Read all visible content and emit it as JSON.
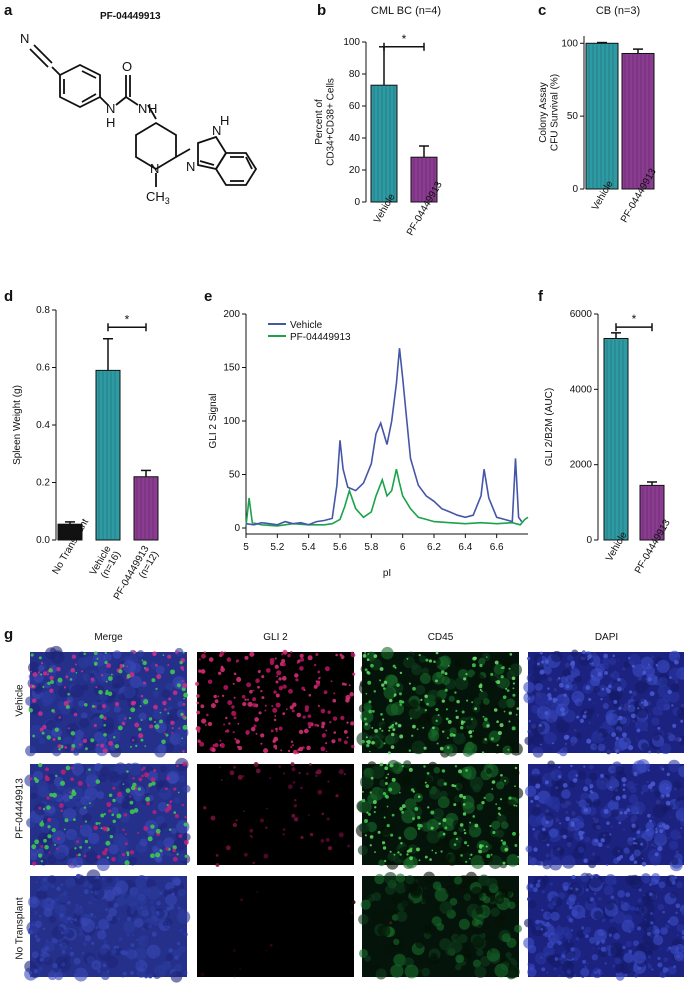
{
  "labels": {
    "a": "a",
    "b": "b",
    "c": "c",
    "d": "d",
    "e": "e",
    "f": "f",
    "g": "g"
  },
  "compound": {
    "name": "PF-04449913",
    "atoms": {
      "N_nitrile": "N",
      "N_h1": "N",
      "H1": "H",
      "O": "O",
      "N_h2": "N",
      "H2": "H",
      "N_pip": "N",
      "CH3": "CH",
      "CH3_sub": "3",
      "N_bz1": "N",
      "H_bz": "H",
      "N_bz2": "N"
    }
  },
  "colors": {
    "teal": "#2e9aa3",
    "purple": "#8a3c91",
    "black": "#111111",
    "blue": "#4556a8",
    "green": "#1aa34a"
  },
  "chart_b": {
    "chart_data": {
      "type": "bar",
      "title": "CML BC (n=4)",
      "ylabel": "Percent of\nCD34+CD38+ Cells",
      "categories": [
        "Vehicle",
        "PF-04449913"
      ],
      "values": [
        73,
        28
      ],
      "errors": [
        24,
        7
      ],
      "ylim": [
        0,
        100
      ],
      "yticks": [
        0,
        20,
        40,
        60,
        80,
        100
      ],
      "significance": "*"
    }
  },
  "chart_c": {
    "chart_data": {
      "type": "bar",
      "title": "CB (n=3)",
      "ylabel": "Colony Assay\nCFU Survival (%)",
      "categories": [
        "Vehicle",
        "PF-04449913"
      ],
      "values": [
        100,
        93
      ],
      "errors": [
        0.5,
        3
      ],
      "ylim": [
        0,
        105
      ],
      "yticks": [
        0,
        50,
        100
      ]
    }
  },
  "chart_d": {
    "chart_data": {
      "type": "bar",
      "ylabel": "Spleen Weight (g)",
      "categories": [
        "No Transplant",
        "Vehicle\n(n=16)",
        "PF-04449913\n(n=12)"
      ],
      "values": [
        0.055,
        0.59,
        0.22
      ],
      "errors": [
        0.008,
        0.11,
        0.022
      ],
      "ylim": [
        0,
        0.8
      ],
      "yticks": [
        0.0,
        0.2,
        0.4,
        0.6,
        0.8
      ],
      "significance": "*"
    }
  },
  "chart_e": {
    "chart_data": {
      "type": "line",
      "xlabel": "pI",
      "ylabel": "GLI 2 Signal",
      "xlim": [
        5,
        6.8
      ],
      "ylim": [
        0,
        200
      ],
      "xticks": [
        5,
        5.2,
        5.4,
        5.6,
        5.8,
        6,
        6.2,
        6.4,
        6.6
      ],
      "yticks": [
        0,
        50,
        100,
        150,
        200
      ],
      "series": [
        {
          "name": "Vehicle",
          "points": [
            [
              5.0,
              4
            ],
            [
              5.05,
              3
            ],
            [
              5.1,
              5
            ],
            [
              5.15,
              4
            ],
            [
              5.2,
              3
            ],
            [
              5.25,
              6
            ],
            [
              5.3,
              4
            ],
            [
              5.35,
              5
            ],
            [
              5.4,
              3
            ],
            [
              5.45,
              6
            ],
            [
              5.5,
              7
            ],
            [
              5.55,
              9
            ],
            [
              5.58,
              40
            ],
            [
              5.6,
              82
            ],
            [
              5.62,
              55
            ],
            [
              5.65,
              38
            ],
            [
              5.7,
              35
            ],
            [
              5.75,
              42
            ],
            [
              5.8,
              60
            ],
            [
              5.83,
              88
            ],
            [
              5.86,
              98
            ],
            [
              5.9,
              78
            ],
            [
              5.93,
              100
            ],
            [
              5.96,
              135
            ],
            [
              5.98,
              168
            ],
            [
              6.0,
              140
            ],
            [
              6.02,
              110
            ],
            [
              6.05,
              65
            ],
            [
              6.1,
              40
            ],
            [
              6.15,
              30
            ],
            [
              6.2,
              25
            ],
            [
              6.25,
              18
            ],
            [
              6.3,
              15
            ],
            [
              6.35,
              12
            ],
            [
              6.4,
              10
            ],
            [
              6.45,
              12
            ],
            [
              6.5,
              30
            ],
            [
              6.52,
              55
            ],
            [
              6.55,
              28
            ],
            [
              6.6,
              10
            ],
            [
              6.65,
              8
            ],
            [
              6.7,
              6
            ],
            [
              6.72,
              65
            ],
            [
              6.74,
              10
            ],
            [
              6.76,
              6
            ]
          ]
        },
        {
          "name": "PF-04449913",
          "points": [
            [
              5.0,
              2
            ],
            [
              5.02,
              28
            ],
            [
              5.04,
              5
            ],
            [
              5.1,
              3
            ],
            [
              5.2,
              2
            ],
            [
              5.3,
              4
            ],
            [
              5.4,
              3
            ],
            [
              5.5,
              3
            ],
            [
              5.55,
              4
            ],
            [
              5.6,
              8
            ],
            [
              5.63,
              20
            ],
            [
              5.66,
              35
            ],
            [
              5.7,
              18
            ],
            [
              5.75,
              10
            ],
            [
              5.8,
              15
            ],
            [
              5.83,
              30
            ],
            [
              5.87,
              45
            ],
            [
              5.9,
              30
            ],
            [
              5.93,
              35
            ],
            [
              5.96,
              55
            ],
            [
              5.98,
              42
            ],
            [
              6.0,
              30
            ],
            [
              6.05,
              18
            ],
            [
              6.1,
              10
            ],
            [
              6.15,
              8
            ],
            [
              6.2,
              6
            ],
            [
              6.3,
              5
            ],
            [
              6.4,
              4
            ],
            [
              6.5,
              5
            ],
            [
              6.6,
              4
            ],
            [
              6.7,
              5
            ],
            [
              6.75,
              3
            ],
            [
              6.78,
              8
            ],
            [
              6.8,
              10
            ]
          ]
        }
      ]
    }
  },
  "chart_f": {
    "chart_data": {
      "type": "bar",
      "ylabel": "GLI 2/B2M (AUC)",
      "categories": [
        "Vehicle",
        "PF-04449913"
      ],
      "values": [
        5350,
        1450
      ],
      "errors": [
        150,
        90
      ],
      "ylim": [
        0,
        6000
      ],
      "yticks": [
        0,
        2000,
        4000,
        6000
      ],
      "significance": "*"
    }
  },
  "micrographs": {
    "columns": [
      "Merge",
      "GLI 2",
      "CD45",
      "DAPI"
    ],
    "rows": [
      "Vehicle",
      "PF-04449913",
      "No Transplant"
    ]
  }
}
